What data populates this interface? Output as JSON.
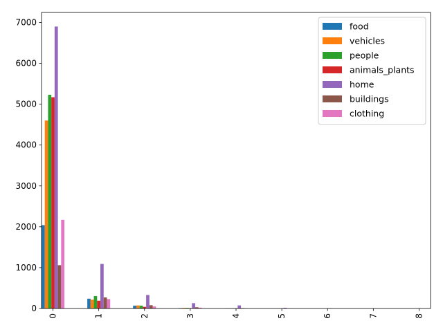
{
  "chart_data": {
    "type": "bar",
    "categories": [
      "0",
      "1",
      "2",
      "3",
      "4",
      "5",
      "6",
      "7",
      "8"
    ],
    "series": [
      {
        "name": "food",
        "color": "#1f77b4",
        "values": [
          2040,
          240,
          70,
          10,
          5,
          2,
          1,
          0,
          0
        ]
      },
      {
        "name": "vehicles",
        "color": "#ff7f0e",
        "values": [
          4600,
          215,
          75,
          15,
          6,
          2,
          1,
          0,
          0
        ]
      },
      {
        "name": "people",
        "color": "#2ca02c",
        "values": [
          5230,
          305,
          70,
          15,
          6,
          2,
          1,
          0,
          0
        ]
      },
      {
        "name": "animals_plants",
        "color": "#d62728",
        "values": [
          5170,
          190,
          40,
          10,
          4,
          1,
          0,
          0,
          0
        ]
      },
      {
        "name": "home",
        "color": "#9467bd",
        "values": [
          6900,
          1090,
          330,
          130,
          75,
          18,
          8,
          3,
          2
        ]
      },
      {
        "name": "buildings",
        "color": "#8c564b",
        "values": [
          1060,
          270,
          80,
          30,
          10,
          3,
          1,
          0,
          0
        ]
      },
      {
        "name": "clothing",
        "color": "#e377c2",
        "values": [
          2170,
          230,
          50,
          20,
          6,
          2,
          1,
          0,
          0
        ]
      }
    ],
    "yticks": [
      0,
      1000,
      2000,
      3000,
      4000,
      5000,
      6000,
      7000
    ],
    "ylim": [
      0,
      7245
    ],
    "xlabel": "",
    "ylabel": "",
    "title": "",
    "grid": false,
    "legend_position": "top-right"
  }
}
